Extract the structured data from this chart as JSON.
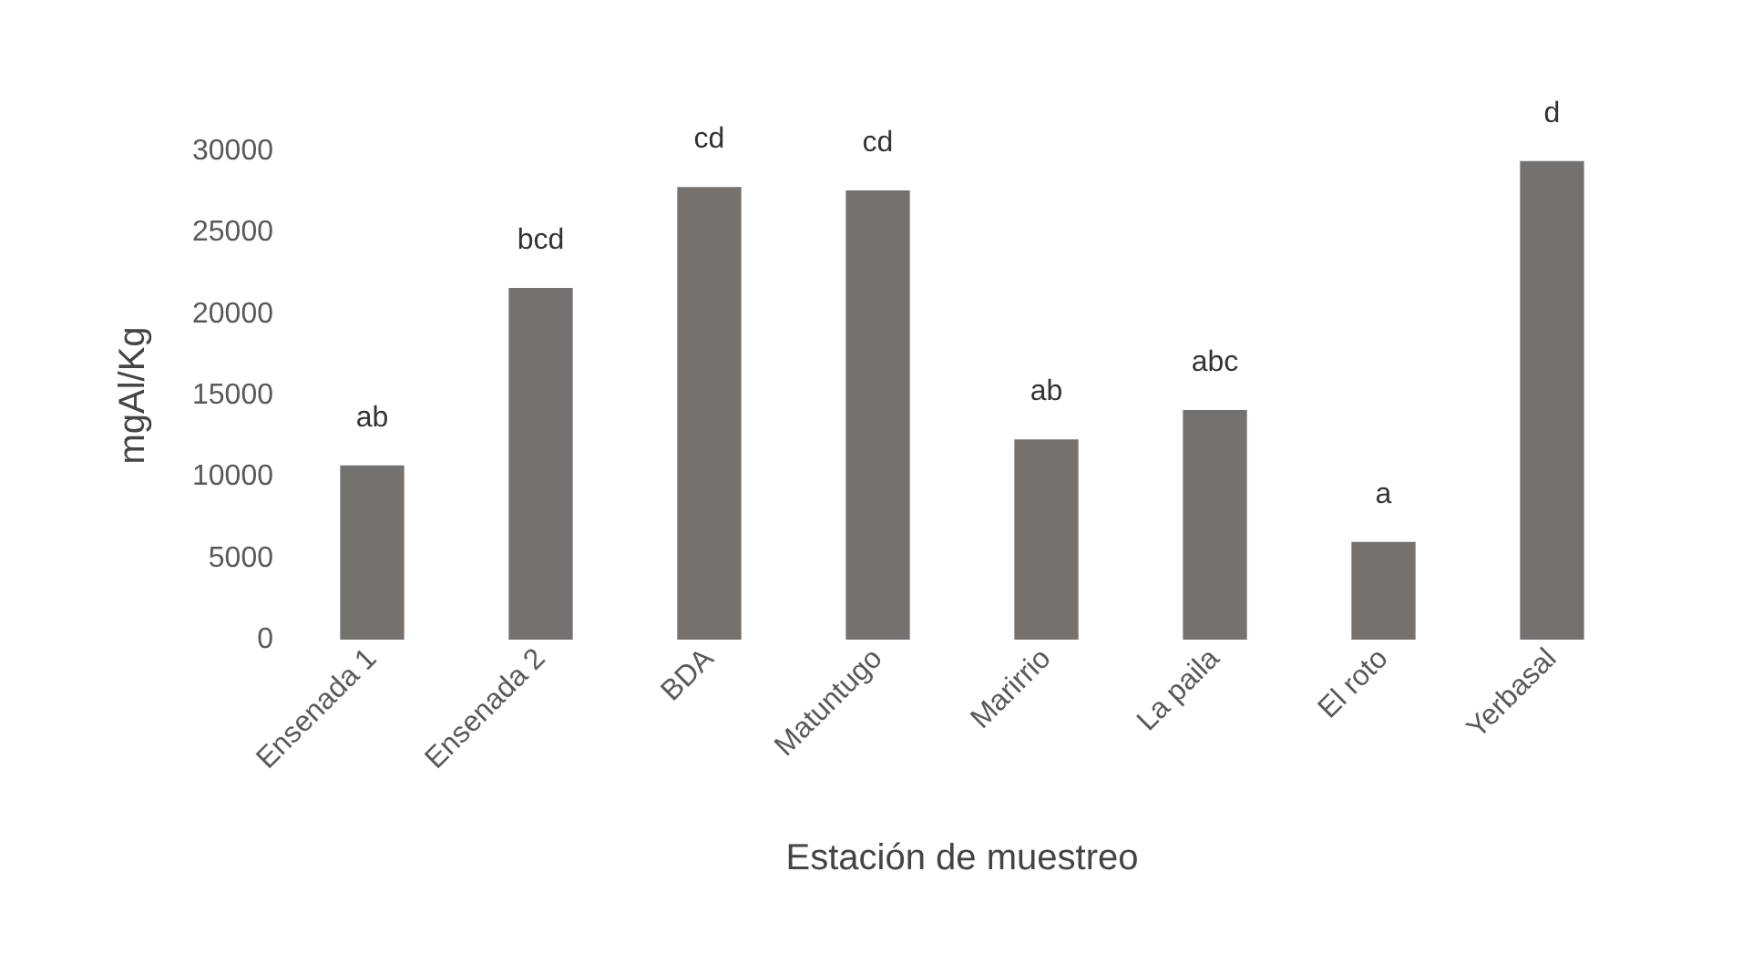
{
  "chart_data": {
    "type": "bar",
    "xlabel": "Estación de muestreo",
    "ylabel": "mgAl/Kg",
    "categories": [
      "Ensenada 1",
      "Ensenada 2",
      "BDA",
      "Matuntugo",
      "Marirrio",
      "La paila",
      "El roto",
      "Yerbasal"
    ],
    "values": [
      10700,
      21600,
      27800,
      27600,
      12300,
      14100,
      6000,
      29400
    ],
    "value_labels": [
      "ab",
      "bcd",
      "cd",
      "cd",
      "ab",
      "abc",
      "a",
      "d"
    ],
    "color": "#75716f",
    "ylim": [
      0,
      30000
    ],
    "yticks": [
      0,
      5000,
      10000,
      15000,
      20000,
      25000,
      30000
    ],
    "grid": false
  }
}
